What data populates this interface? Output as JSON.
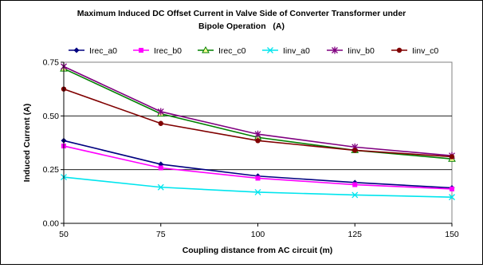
{
  "chart_data": {
    "type": "line",
    "title_line1": "Maximum Induced DC Offset Current in Valve Side of Converter Transformer under",
    "title_line2": "Bipole Operation   (A)",
    "xlabel": "Coupling distance from AC circuit (m)",
    "ylabel": "Induced Current (A)",
    "x": [
      50,
      75,
      100,
      125,
      150
    ],
    "x_tick_labels": [
      "50",
      "75",
      "100",
      "125",
      "150"
    ],
    "ylim": [
      0,
      0.75
    ],
    "y_ticks": [
      0,
      0.25,
      0.5,
      0.75
    ],
    "y_tick_labels": [
      "0.00",
      "0.25",
      "0.50",
      "0.75"
    ],
    "grid": "horizontal",
    "legend_position": "top",
    "series": [
      {
        "name": "Irec_a0",
        "color": "#000080",
        "marker": "diamond",
        "values": [
          0.385,
          0.275,
          0.22,
          0.19,
          0.165
        ]
      },
      {
        "name": "Irec_b0",
        "color": "#ff00ff",
        "marker": "square",
        "values": [
          0.36,
          0.258,
          0.21,
          0.18,
          0.16
        ]
      },
      {
        "name": "Irec_c0",
        "color": "#008000",
        "marker": "triangle",
        "values": [
          0.72,
          0.51,
          0.4,
          0.34,
          0.3
        ]
      },
      {
        "name": "Iinv_a0",
        "color": "#00e5ee",
        "marker": "x",
        "values": [
          0.215,
          0.168,
          0.145,
          0.132,
          0.122
        ]
      },
      {
        "name": "Iinv_b0",
        "color": "#800080",
        "marker": "star",
        "values": [
          0.73,
          0.52,
          0.415,
          0.355,
          0.315
        ]
      },
      {
        "name": "Iinv_c0",
        "color": "#800000",
        "marker": "circle",
        "values": [
          0.625,
          0.465,
          0.385,
          0.34,
          0.31
        ]
      }
    ]
  }
}
